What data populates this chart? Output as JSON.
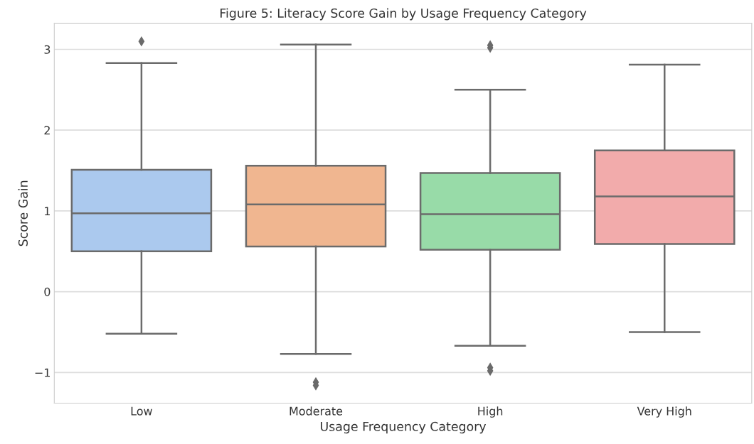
{
  "chart_data": {
    "type": "box",
    "title": "Figure 5: Literacy Score Gain by Usage Frequency Category",
    "xlabel": "Usage Frequency Category",
    "ylabel": "Score Gain",
    "categories": [
      "Low",
      "Moderate",
      "High",
      "Very High"
    ],
    "colors": [
      "#abc9ee",
      "#f0b690",
      "#98dba8",
      "#f2abab"
    ],
    "boxes": [
      {
        "low": -0.52,
        "q1": 0.5,
        "median": 0.97,
        "q3": 1.51,
        "high": 2.83,
        "outliers": [
          3.1
        ]
      },
      {
        "low": -0.77,
        "q1": 0.56,
        "median": 1.08,
        "q3": 1.56,
        "high": 3.06,
        "outliers": [
          -1.12,
          -1.16
        ]
      },
      {
        "low": -0.67,
        "q1": 0.52,
        "median": 0.96,
        "q3": 1.47,
        "high": 2.5,
        "outliers": [
          3.05,
          3.02,
          -0.94,
          -0.98
        ]
      },
      {
        "low": -0.5,
        "q1": 0.59,
        "median": 1.18,
        "q3": 1.75,
        "high": 2.81
      }
    ],
    "ylim": [
      -1.38,
      3.32
    ],
    "yticks": [
      {
        "value": -1,
        "label": "−1"
      },
      0,
      1,
      2,
      3
    ],
    "grid": "y"
  }
}
